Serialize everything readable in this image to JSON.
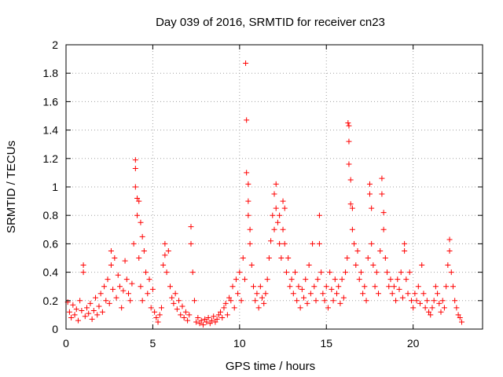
{
  "chart_data": {
    "type": "scatter",
    "title": "Day 039 of 2016, SRMTID for receiver cn23",
    "xlabel": "GPS time / hours",
    "ylabel": "SRMTID / TECUs",
    "xlim": [
      0,
      24
    ],
    "ylim": [
      0,
      2
    ],
    "xticks": [
      0,
      5,
      10,
      15,
      20
    ],
    "yticks": [
      0,
      0.2,
      0.4,
      0.6,
      0.8,
      1,
      1.2,
      1.4,
      1.6,
      1.8,
      2
    ],
    "ytick_labels": [
      "0",
      "0.2",
      "0.4",
      "0.6",
      "0.8",
      "1",
      "1.2",
      "1.4",
      "1.6",
      "1.8",
      "2"
    ],
    "grid": true,
    "marker": "+",
    "colors": {
      "series": "#ff0000",
      "grid": "#a0a0a0",
      "axis": "#000000"
    },
    "series": [
      {
        "name": "SRMTID",
        "points": [
          [
            0.1,
            0.19
          ],
          [
            0.2,
            0.12
          ],
          [
            0.3,
            0.08
          ],
          [
            0.4,
            0.17
          ],
          [
            0.5,
            0.1
          ],
          [
            0.6,
            0.14
          ],
          [
            0.7,
            0.06
          ],
          [
            0.8,
            0.2
          ],
          [
            0.9,
            0.13
          ],
          [
            1.0,
            0.45
          ],
          [
            1.0,
            0.4
          ],
          [
            1.1,
            0.09
          ],
          [
            1.2,
            0.15
          ],
          [
            1.3,
            0.11
          ],
          [
            1.4,
            0.18
          ],
          [
            1.5,
            0.07
          ],
          [
            1.6,
            0.13
          ],
          [
            1.7,
            0.22
          ],
          [
            1.8,
            0.1
          ],
          [
            1.9,
            0.16
          ],
          [
            2.0,
            0.25
          ],
          [
            2.1,
            0.12
          ],
          [
            2.2,
            0.3
          ],
          [
            2.3,
            0.2
          ],
          [
            2.4,
            0.35
          ],
          [
            2.5,
            0.18
          ],
          [
            2.6,
            0.55
          ],
          [
            2.6,
            0.45
          ],
          [
            2.7,
            0.28
          ],
          [
            2.8,
            0.5
          ],
          [
            2.9,
            0.22
          ],
          [
            3.0,
            0.38
          ],
          [
            3.1,
            0.3
          ],
          [
            3.2,
            0.15
          ],
          [
            3.3,
            0.27
          ],
          [
            3.4,
            0.48
          ],
          [
            3.5,
            0.35
          ],
          [
            3.6,
            0.25
          ],
          [
            3.7,
            0.2
          ],
          [
            3.8,
            0.32
          ],
          [
            3.9,
            0.6
          ],
          [
            4.0,
            1.19
          ],
          [
            4.0,
            1.13
          ],
          [
            4.0,
            1.0
          ],
          [
            4.1,
            0.92
          ],
          [
            4.1,
            0.8
          ],
          [
            4.2,
            0.9
          ],
          [
            4.2,
            0.5
          ],
          [
            4.3,
            0.75
          ],
          [
            4.3,
            0.3
          ],
          [
            4.4,
            0.65
          ],
          [
            4.4,
            0.2
          ],
          [
            4.5,
            0.55
          ],
          [
            4.6,
            0.4
          ],
          [
            4.7,
            0.25
          ],
          [
            4.8,
            0.35
          ],
          [
            4.9,
            0.15
          ],
          [
            5.0,
            0.28
          ],
          [
            5.1,
            0.12
          ],
          [
            5.2,
            0.08
          ],
          [
            5.3,
            0.05
          ],
          [
            5.4,
            0.1
          ],
          [
            5.5,
            0.15
          ],
          [
            5.6,
            0.45
          ],
          [
            5.7,
            0.6
          ],
          [
            5.7,
            0.52
          ],
          [
            5.8,
            0.4
          ],
          [
            5.9,
            0.55
          ],
          [
            6.0,
            0.3
          ],
          [
            6.1,
            0.22
          ],
          [
            6.2,
            0.18
          ],
          [
            6.3,
            0.25
          ],
          [
            6.4,
            0.14
          ],
          [
            6.5,
            0.2
          ],
          [
            6.6,
            0.1
          ],
          [
            6.7,
            0.16
          ],
          [
            6.8,
            0.08
          ],
          [
            6.9,
            0.12
          ],
          [
            7.0,
            0.06
          ],
          [
            7.1,
            0.1
          ],
          [
            7.2,
            0.72
          ],
          [
            7.2,
            0.6
          ],
          [
            7.3,
            0.4
          ],
          [
            7.4,
            0.2
          ],
          [
            7.5,
            0.05
          ],
          [
            7.6,
            0.08
          ],
          [
            7.7,
            0.04
          ],
          [
            7.8,
            0.06
          ],
          [
            7.9,
            0.03
          ],
          [
            8.0,
            0.07
          ],
          [
            8.1,
            0.05
          ],
          [
            8.2,
            0.08
          ],
          [
            8.3,
            0.04
          ],
          [
            8.4,
            0.06
          ],
          [
            8.5,
            0.09
          ],
          [
            8.6,
            0.05
          ],
          [
            8.7,
            0.07
          ],
          [
            8.8,
            0.1
          ],
          [
            8.9,
            0.12
          ],
          [
            9.0,
            0.08
          ],
          [
            9.1,
            0.15
          ],
          [
            9.2,
            0.18
          ],
          [
            9.3,
            0.1
          ],
          [
            9.4,
            0.22
          ],
          [
            9.5,
            0.2
          ],
          [
            9.6,
            0.3
          ],
          [
            9.7,
            0.15
          ],
          [
            9.8,
            0.35
          ],
          [
            9.9,
            0.25
          ],
          [
            10.0,
            0.4
          ],
          [
            10.1,
            0.2
          ],
          [
            10.2,
            0.5
          ],
          [
            10.3,
            0.35
          ],
          [
            10.35,
            1.87
          ],
          [
            10.4,
            1.47
          ],
          [
            10.4,
            1.1
          ],
          [
            10.5,
            1.02
          ],
          [
            10.5,
            0.9
          ],
          [
            10.5,
            0.8
          ],
          [
            10.6,
            0.7
          ],
          [
            10.6,
            0.6
          ],
          [
            10.7,
            0.45
          ],
          [
            10.8,
            0.3
          ],
          [
            10.9,
            0.2
          ],
          [
            11.0,
            0.25
          ],
          [
            11.1,
            0.15
          ],
          [
            11.2,
            0.3
          ],
          [
            11.3,
            0.22
          ],
          [
            11.4,
            0.18
          ],
          [
            11.5,
            0.25
          ],
          [
            11.6,
            0.35
          ],
          [
            11.7,
            0.5
          ],
          [
            11.8,
            0.62
          ],
          [
            11.9,
            0.8
          ],
          [
            12.0,
            0.7
          ],
          [
            12.0,
            0.95
          ],
          [
            12.1,
            1.02
          ],
          [
            12.1,
            0.85
          ],
          [
            12.2,
            0.75
          ],
          [
            12.3,
            0.6
          ],
          [
            12.3,
            0.8
          ],
          [
            12.4,
            0.5
          ],
          [
            12.5,
            0.9
          ],
          [
            12.5,
            0.7
          ],
          [
            12.6,
            0.85
          ],
          [
            12.6,
            0.6
          ],
          [
            12.7,
            0.4
          ],
          [
            12.8,
            0.5
          ],
          [
            12.9,
            0.3
          ],
          [
            13.0,
            0.35
          ],
          [
            13.1,
            0.25
          ],
          [
            13.2,
            0.4
          ],
          [
            13.3,
            0.2
          ],
          [
            13.4,
            0.3
          ],
          [
            13.5,
            0.15
          ],
          [
            13.6,
            0.28
          ],
          [
            13.7,
            0.22
          ],
          [
            13.8,
            0.35
          ],
          [
            13.9,
            0.18
          ],
          [
            14.0,
            0.45
          ],
          [
            14.1,
            0.25
          ],
          [
            14.2,
            0.6
          ],
          [
            14.3,
            0.3
          ],
          [
            14.4,
            0.2
          ],
          [
            14.5,
            0.35
          ],
          [
            14.6,
            0.8
          ],
          [
            14.6,
            0.6
          ],
          [
            14.7,
            0.4
          ],
          [
            14.8,
            0.25
          ],
          [
            14.9,
            0.2
          ],
          [
            15.0,
            0.3
          ],
          [
            15.1,
            0.15
          ],
          [
            15.2,
            0.4
          ],
          [
            15.3,
            0.28
          ],
          [
            15.4,
            0.2
          ],
          [
            15.5,
            0.35
          ],
          [
            15.6,
            0.25
          ],
          [
            15.7,
            0.3
          ],
          [
            15.8,
            0.18
          ],
          [
            15.9,
            0.35
          ],
          [
            16.0,
            0.22
          ],
          [
            16.1,
            0.4
          ],
          [
            16.2,
            0.5
          ],
          [
            16.25,
            1.45
          ],
          [
            16.3,
            1.43
          ],
          [
            16.3,
            1.32
          ],
          [
            16.3,
            1.16
          ],
          [
            16.4,
            1.05
          ],
          [
            16.4,
            0.88
          ],
          [
            16.5,
            0.85
          ],
          [
            16.5,
            0.7
          ],
          [
            16.6,
            0.6
          ],
          [
            16.7,
            0.45
          ],
          [
            16.8,
            0.55
          ],
          [
            16.9,
            0.35
          ],
          [
            17.0,
            0.4
          ],
          [
            17.1,
            0.25
          ],
          [
            17.2,
            0.3
          ],
          [
            17.3,
            0.2
          ],
          [
            17.4,
            0.5
          ],
          [
            17.5,
            1.02
          ],
          [
            17.5,
            0.95
          ],
          [
            17.6,
            0.85
          ],
          [
            17.6,
            0.6
          ],
          [
            17.7,
            0.45
          ],
          [
            17.8,
            0.3
          ],
          [
            17.9,
            0.4
          ],
          [
            18.0,
            0.25
          ],
          [
            18.1,
            0.55
          ],
          [
            18.2,
            1.06
          ],
          [
            18.2,
            0.95
          ],
          [
            18.3,
            0.82
          ],
          [
            18.3,
            0.7
          ],
          [
            18.4,
            0.5
          ],
          [
            18.5,
            0.4
          ],
          [
            18.6,
            0.3
          ],
          [
            18.7,
            0.35
          ],
          [
            18.8,
            0.25
          ],
          [
            18.9,
            0.3
          ],
          [
            19.0,
            0.2
          ],
          [
            19.1,
            0.35
          ],
          [
            19.2,
            0.28
          ],
          [
            19.3,
            0.4
          ],
          [
            19.4,
            0.22
          ],
          [
            19.5,
            0.6
          ],
          [
            19.5,
            0.55
          ],
          [
            19.6,
            0.35
          ],
          [
            19.7,
            0.25
          ],
          [
            19.8,
            0.4
          ],
          [
            19.9,
            0.2
          ],
          [
            20.0,
            0.15
          ],
          [
            20.1,
            0.25
          ],
          [
            20.2,
            0.2
          ],
          [
            20.3,
            0.3
          ],
          [
            20.4,
            0.18
          ],
          [
            20.5,
            0.45
          ],
          [
            20.6,
            0.25
          ],
          [
            20.7,
            0.15
          ],
          [
            20.8,
            0.2
          ],
          [
            20.9,
            0.12
          ],
          [
            21.0,
            0.1
          ],
          [
            21.1,
            0.15
          ],
          [
            21.2,
            0.2
          ],
          [
            21.3,
            0.3
          ],
          [
            21.4,
            0.25
          ],
          [
            21.5,
            0.18
          ],
          [
            21.6,
            0.12
          ],
          [
            21.7,
            0.2
          ],
          [
            21.8,
            0.15
          ],
          [
            21.9,
            0.3
          ],
          [
            22.0,
            0.45
          ],
          [
            22.1,
            0.63
          ],
          [
            22.1,
            0.55
          ],
          [
            22.2,
            0.4
          ],
          [
            22.3,
            0.3
          ],
          [
            22.4,
            0.2
          ],
          [
            22.5,
            0.15
          ],
          [
            22.6,
            0.1
          ],
          [
            22.7,
            0.08
          ],
          [
            22.8,
            0.05
          ]
        ]
      }
    ]
  }
}
